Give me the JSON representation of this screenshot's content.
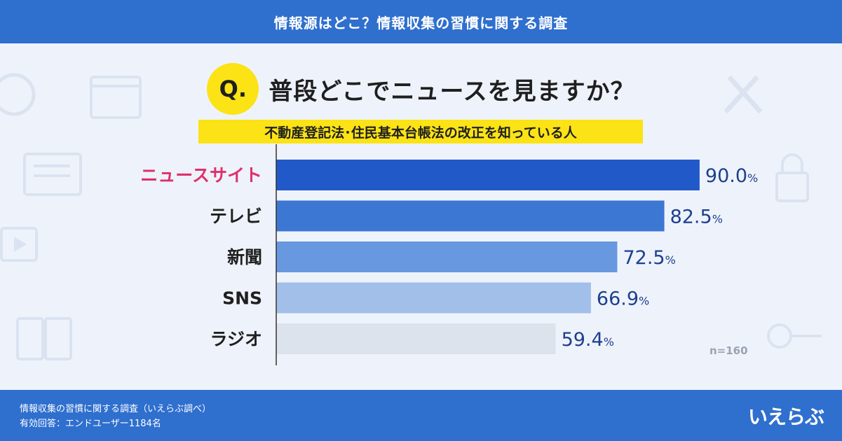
{
  "header": {
    "title": "情報源はどこ？情報収集の習慣に関する調査"
  },
  "question": {
    "marker": "Q.",
    "text": "普段どこでニュースを見ますか？"
  },
  "subtitle": "不動産登記法･住民基本台帳法の改正を知っている人",
  "footer": {
    "line1": "情報収集の習慣に関する調査（いえらぶ調べ）",
    "line2": "有効回答：エンドユーザー1184名",
    "logo": "いえらぶ"
  },
  "colors": {
    "bars": [
      "#2259c9",
      "#3d77d4",
      "#6798e0",
      "#a2bfe9",
      "#dde3ec"
    ],
    "highlight_label": "#e0306a",
    "value_text": "#1e3f8f",
    "header": "#2f6fce",
    "accent_yellow": "#fbe316"
  },
  "chart_data": {
    "type": "bar",
    "orientation": "horizontal",
    "categories": [
      "ニュースサイト",
      "テレビ",
      "新聞",
      "SNS",
      "ラジオ"
    ],
    "values": [
      90.0,
      82.5,
      72.5,
      66.9,
      59.4
    ],
    "value_labels": [
      "90.0",
      "82.5",
      "72.5",
      "66.9",
      "59.4"
    ],
    "unit": "%",
    "xlim": [
      0,
      100
    ],
    "highlight_category": "ニュースサイト",
    "sample_note": "n=160"
  }
}
